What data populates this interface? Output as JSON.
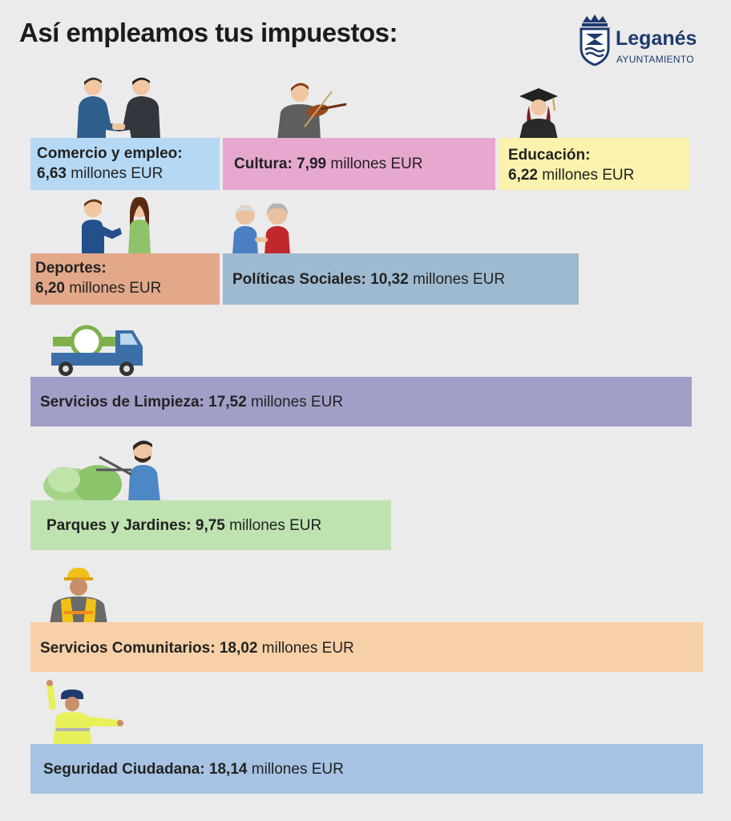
{
  "title": "Así empleamos tus impuestos:",
  "logo": {
    "name": "Leganés",
    "subtitle": "AYUNTAMIENTO"
  },
  "chart_data": {
    "type": "bar",
    "unit": "millones EUR",
    "categories": [
      "Comercio y empleo:",
      "Cultura:",
      "Educación:",
      "Deportes:",
      "Políticas Sociales:",
      "Servicios de Limpieza:",
      "Parques y Jardines:",
      "Servicios Comunitarios:",
      "Seguridad Ciudadana:"
    ],
    "values": [
      6.63,
      7.99,
      6.22,
      6.2,
      10.32,
      17.52,
      9.75,
      18.02,
      18.14
    ],
    "value_labels": [
      "6,63",
      "7,99",
      "6,22",
      "6,20",
      "10,32",
      "17,52",
      "9,75",
      "18,02",
      "18,14"
    ],
    "colors": [
      "#b5d9f5",
      "#e7a8cf",
      "#fbf2ad",
      "#e3a88a",
      "#9ebad0",
      "#a19fc8",
      "#bfe2b1",
      "#f7d0a7",
      "#a6c3e3"
    ],
    "icons": [
      "handshake-icon",
      "violinist-icon",
      "graduate-icon",
      "runners-icon",
      "elderly-couple-icon",
      "cleaning-truck-icon",
      "gardener-icon",
      "worker-icon",
      "police-officer-icon"
    ]
  }
}
